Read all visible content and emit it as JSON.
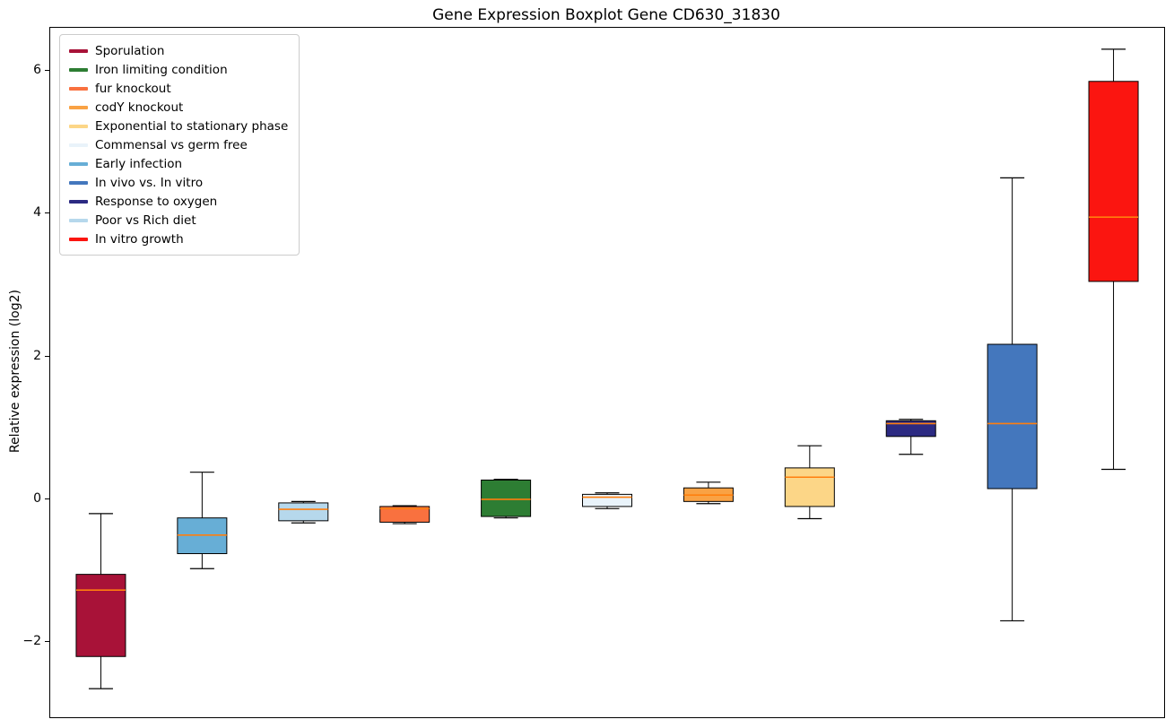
{
  "figure": {
    "background": "#ffffff"
  },
  "chart_data": {
    "type": "boxplot",
    "title": "Gene Expression Boxplot Gene CD630_31830",
    "xlabel": "",
    "ylabel": "Relative expression (log2)",
    "ylim": [
      -3.05,
      6.6
    ],
    "yticks": [
      -2,
      0,
      2,
      4,
      6
    ],
    "grid": false,
    "legend_position": "upper left",
    "median_color": "#ff7f0e",
    "box_edge_color": "#000000",
    "legend": [
      {
        "label": "Sporulation",
        "color": "#a81238"
      },
      {
        "label": "Iron limiting condition",
        "color": "#2d7d33"
      },
      {
        "label": "fur knockout",
        "color": "#f9713f"
      },
      {
        "label": "codY knockout",
        "color": "#f9a244"
      },
      {
        "label": "Exponential to stationary phase",
        "color": "#fcd687"
      },
      {
        "label": "Commensal vs germ free",
        "color": "#e9f3fa"
      },
      {
        "label": "Early infection",
        "color": "#67aed6"
      },
      {
        "label": "In vivo vs. In vitro",
        "color": "#4477bd"
      },
      {
        "label": "Response to oxygen",
        "color": "#2c2a82"
      },
      {
        "label": "Poor vs Rich diet",
        "color": "#b6d8ec"
      },
      {
        "label": "In vitro growth",
        "color": "#fb1510"
      }
    ],
    "boxes": [
      {
        "label": "Sporulation",
        "color": "#a81238",
        "whislo": -2.65,
        "q1": -2.2,
        "med": -1.27,
        "q3": -1.05,
        "whishi": -0.2
      },
      {
        "label": "Early infection",
        "color": "#67aed6",
        "whislo": -0.97,
        "q1": -0.76,
        "med": -0.5,
        "q3": -0.26,
        "whishi": 0.38
      },
      {
        "label": "Poor vs Rich diet",
        "color": "#b6d8ec",
        "whislo": -0.33,
        "q1": -0.3,
        "med": -0.14,
        "q3": -0.05,
        "whishi": -0.03
      },
      {
        "label": "fur knockout",
        "color": "#f9713f",
        "whislo": -0.34,
        "q1": -0.32,
        "med": -0.13,
        "q3": -0.1,
        "whishi": -0.09
      },
      {
        "label": "Iron limiting condition",
        "color": "#2d7d33",
        "whislo": -0.26,
        "q1": -0.24,
        "med": 0.0,
        "q3": 0.27,
        "whishi": 0.28
      },
      {
        "label": "Commensal vs germ free",
        "color": "#e9f3fa",
        "whislo": -0.13,
        "q1": -0.1,
        "med": 0.03,
        "q3": 0.07,
        "whishi": 0.09
      },
      {
        "label": "codY knockout",
        "color": "#f9a244",
        "whislo": -0.06,
        "q1": -0.03,
        "med": 0.06,
        "q3": 0.16,
        "whishi": 0.24
      },
      {
        "label": "Exponential to stationary phase",
        "color": "#fcd687",
        "whislo": -0.27,
        "q1": -0.1,
        "med": 0.31,
        "q3": 0.44,
        "whishi": 0.75
      },
      {
        "label": "Response to oxygen",
        "color": "#2c2a82",
        "whislo": 0.63,
        "q1": 0.88,
        "med": 1.06,
        "q3": 1.1,
        "whishi": 1.12
      },
      {
        "label": "In vivo vs. In vitro",
        "color": "#4477bd",
        "whislo": -1.7,
        "q1": 0.15,
        "med": 1.06,
        "q3": 2.17,
        "whishi": 4.5
      },
      {
        "label": "In vitro growth",
        "color": "#fb1510",
        "whislo": 0.42,
        "q1": 3.05,
        "med": 3.95,
        "q3": 5.85,
        "whishi": 6.3
      }
    ]
  }
}
